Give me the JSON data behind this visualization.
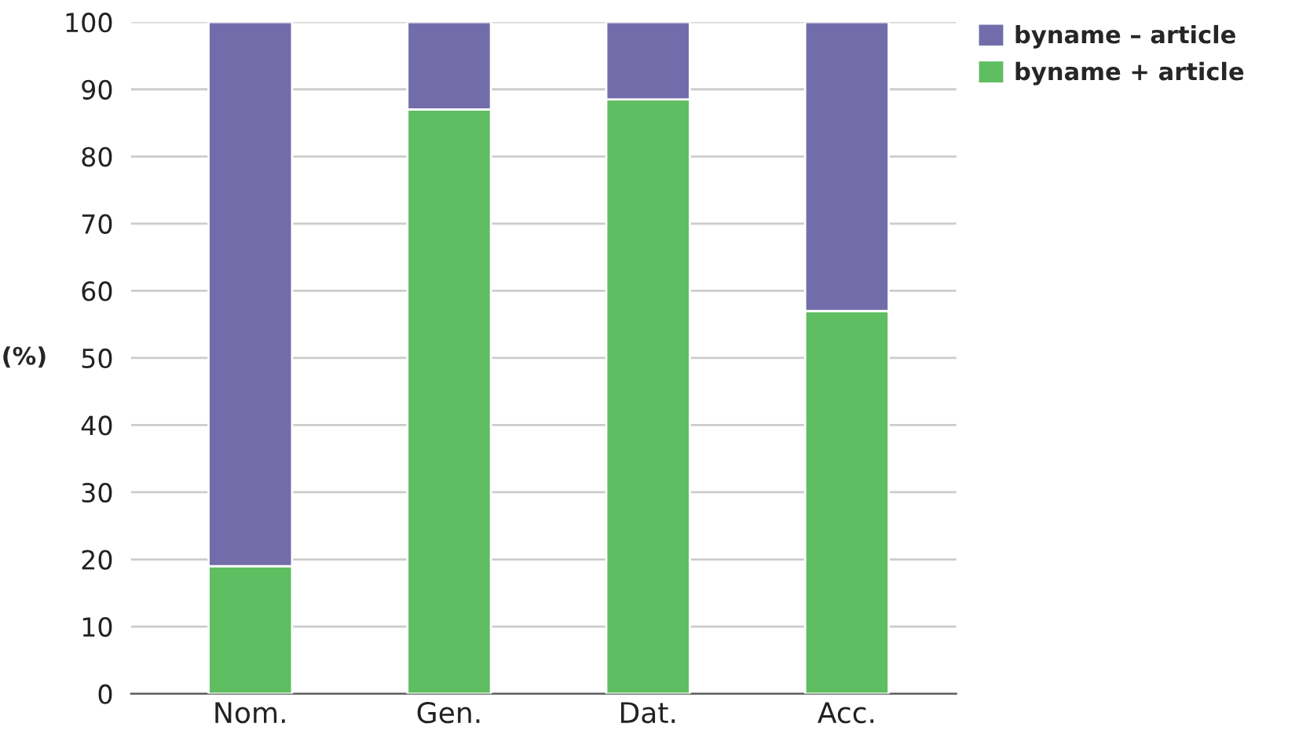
{
  "chart_data": {
    "type": "bar",
    "stacked": true,
    "ylabel": "(%)",
    "categories": [
      "Nom.",
      "Gen.",
      "Dat.",
      "Acc."
    ],
    "series": [
      {
        "name": "byname + article",
        "color": "#5fbd62",
        "values": [
          19,
          87,
          88.5,
          57
        ]
      },
      {
        "name": "byname – article",
        "color": "#726daa",
        "values": [
          81,
          13,
          11.5,
          43
        ]
      }
    ],
    "ylim": [
      0,
      100
    ],
    "yticks": [
      0,
      10,
      20,
      30,
      40,
      50,
      60,
      70,
      80,
      90,
      100
    ],
    "grid": "y",
    "legend": "top right"
  }
}
